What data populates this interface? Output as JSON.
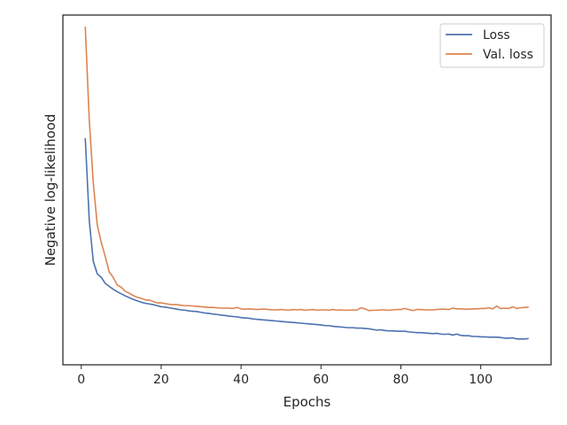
{
  "chart_data": {
    "type": "line",
    "title": "",
    "xlabel": "Epochs",
    "ylabel": "Negative log-likelihood",
    "xlim": [
      -4.6,
      117.6
    ],
    "ylim": [
      0.0,
      1.0
    ],
    "x_ticks": [
      0,
      20,
      40,
      60,
      80,
      100
    ],
    "y_ticks_visible": false,
    "grid": false,
    "legend": "top-right",
    "series": [
      {
        "name": "Loss",
        "color": "#4c72b0",
        "x": [
          1,
          2,
          3,
          4,
          5,
          6,
          7,
          8,
          9,
          10,
          11,
          12,
          13,
          14,
          15,
          16,
          17,
          18,
          19,
          20,
          21,
          22,
          23,
          24,
          25,
          26,
          27,
          28,
          29,
          30,
          31,
          32,
          33,
          34,
          35,
          36,
          37,
          38,
          39,
          40,
          41,
          42,
          43,
          44,
          45,
          46,
          47,
          48,
          49,
          50,
          51,
          52,
          53,
          54,
          55,
          56,
          57,
          58,
          59,
          60,
          61,
          62,
          63,
          64,
          65,
          66,
          67,
          68,
          69,
          70,
          71,
          72,
          73,
          74,
          75,
          76,
          77,
          78,
          79,
          80,
          81,
          82,
          83,
          84,
          85,
          86,
          87,
          88,
          89,
          90,
          91,
          92,
          93,
          94,
          95,
          96,
          97,
          98,
          99,
          100,
          101,
          102,
          103,
          104,
          105,
          106,
          107,
          108,
          109,
          110,
          111,
          112
        ],
        "y": [
          0.648,
          0.413,
          0.296,
          0.26,
          0.25,
          0.233,
          0.224,
          0.216,
          0.209,
          0.203,
          0.197,
          0.192,
          0.187,
          0.183,
          0.179,
          0.176,
          0.174,
          0.172,
          0.169,
          0.166,
          0.165,
          0.163,
          0.161,
          0.159,
          0.157,
          0.156,
          0.154,
          0.153,
          0.152,
          0.15,
          0.148,
          0.147,
          0.145,
          0.144,
          0.142,
          0.141,
          0.139,
          0.138,
          0.137,
          0.135,
          0.134,
          0.133,
          0.131,
          0.13,
          0.129,
          0.128,
          0.127,
          0.126,
          0.125,
          0.124,
          0.123,
          0.122,
          0.121,
          0.12,
          0.119,
          0.118,
          0.117,
          0.116,
          0.115,
          0.114,
          0.112,
          0.112,
          0.11,
          0.109,
          0.108,
          0.107,
          0.106,
          0.106,
          0.105,
          0.105,
          0.104,
          0.103,
          0.101,
          0.099,
          0.1,
          0.098,
          0.097,
          0.097,
          0.096,
          0.096,
          0.096,
          0.094,
          0.093,
          0.092,
          0.092,
          0.091,
          0.09,
          0.089,
          0.09,
          0.088,
          0.087,
          0.088,
          0.085,
          0.088,
          0.084,
          0.083,
          0.083,
          0.081,
          0.081,
          0.08,
          0.08,
          0.079,
          0.079,
          0.079,
          0.078,
          0.076,
          0.076,
          0.077,
          0.074,
          0.074,
          0.074,
          0.075
        ]
      },
      {
        "name": "Val. loss",
        "color": "#dd8452",
        "x": [
          1,
          2,
          3,
          4,
          5,
          6,
          7,
          8,
          9,
          10,
          11,
          12,
          13,
          14,
          15,
          16,
          17,
          18,
          19,
          20,
          21,
          22,
          23,
          24,
          25,
          26,
          27,
          28,
          29,
          30,
          31,
          32,
          33,
          34,
          35,
          36,
          37,
          38,
          39,
          40,
          41,
          42,
          43,
          44,
          45,
          46,
          47,
          48,
          49,
          50,
          51,
          52,
          53,
          54,
          55,
          56,
          57,
          58,
          59,
          60,
          61,
          62,
          63,
          64,
          65,
          66,
          67,
          68,
          69,
          70,
          71,
          72,
          73,
          74,
          75,
          76,
          77,
          78,
          79,
          80,
          81,
          82,
          83,
          84,
          85,
          86,
          87,
          88,
          89,
          90,
          91,
          92,
          93,
          94,
          95,
          96,
          97,
          98,
          99,
          100,
          101,
          102,
          103,
          104,
          105,
          106,
          107,
          108,
          109,
          110,
          111,
          112
        ],
        "y": [
          0.967,
          0.7,
          0.52,
          0.4,
          0.35,
          0.31,
          0.265,
          0.25,
          0.228,
          0.222,
          0.21,
          0.205,
          0.198,
          0.193,
          0.19,
          0.186,
          0.185,
          0.181,
          0.177,
          0.177,
          0.175,
          0.173,
          0.172,
          0.172,
          0.17,
          0.169,
          0.169,
          0.168,
          0.167,
          0.166,
          0.165,
          0.164,
          0.164,
          0.163,
          0.162,
          0.162,
          0.162,
          0.161,
          0.164,
          0.16,
          0.159,
          0.16,
          0.159,
          0.158,
          0.159,
          0.159,
          0.158,
          0.157,
          0.157,
          0.158,
          0.157,
          0.156,
          0.158,
          0.157,
          0.158,
          0.156,
          0.157,
          0.158,
          0.156,
          0.157,
          0.157,
          0.156,
          0.158,
          0.156,
          0.157,
          0.156,
          0.156,
          0.157,
          0.156,
          0.163,
          0.16,
          0.155,
          0.156,
          0.156,
          0.157,
          0.157,
          0.156,
          0.157,
          0.158,
          0.158,
          0.161,
          0.158,
          0.155,
          0.158,
          0.158,
          0.157,
          0.157,
          0.157,
          0.158,
          0.159,
          0.159,
          0.158,
          0.162,
          0.16,
          0.16,
          0.159,
          0.159,
          0.16,
          0.16,
          0.161,
          0.161,
          0.163,
          0.16,
          0.168,
          0.161,
          0.162,
          0.161,
          0.166,
          0.161,
          0.163,
          0.164,
          0.165
        ]
      }
    ]
  }
}
